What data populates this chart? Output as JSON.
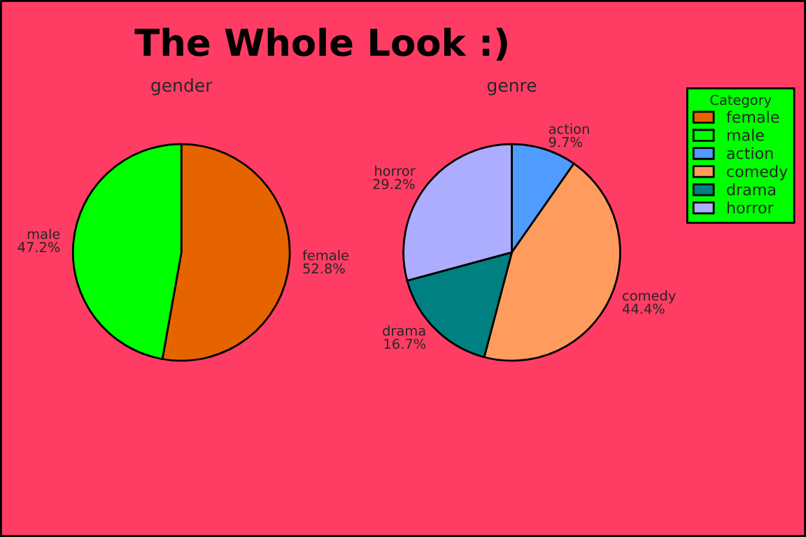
{
  "chart_data": [
    {
      "type": "pie",
      "title": "gender",
      "categories": [
        "female",
        "male"
      ],
      "values": [
        52.8,
        47.2
      ],
      "value_labels": [
        "52.8%",
        "47.2%"
      ],
      "colors": [
        "#e66400",
        "#00ff00"
      ],
      "legend": "right",
      "annotations": [
        "The Whole Look :)"
      ]
    },
    {
      "type": "pie",
      "title": "genre",
      "categories": [
        "action",
        "comedy",
        "drama",
        "horror"
      ],
      "values": [
        9.7,
        44.4,
        16.7,
        29.2
      ],
      "value_labels": [
        "9.7%",
        "44.4%",
        "16.7%",
        "29.2%"
      ],
      "colors": [
        "#4f9bff",
        "#ff9c5d",
        "#008080",
        "#adadff"
      ],
      "legend": "right",
      "legend_title": "Category"
    }
  ]
}
